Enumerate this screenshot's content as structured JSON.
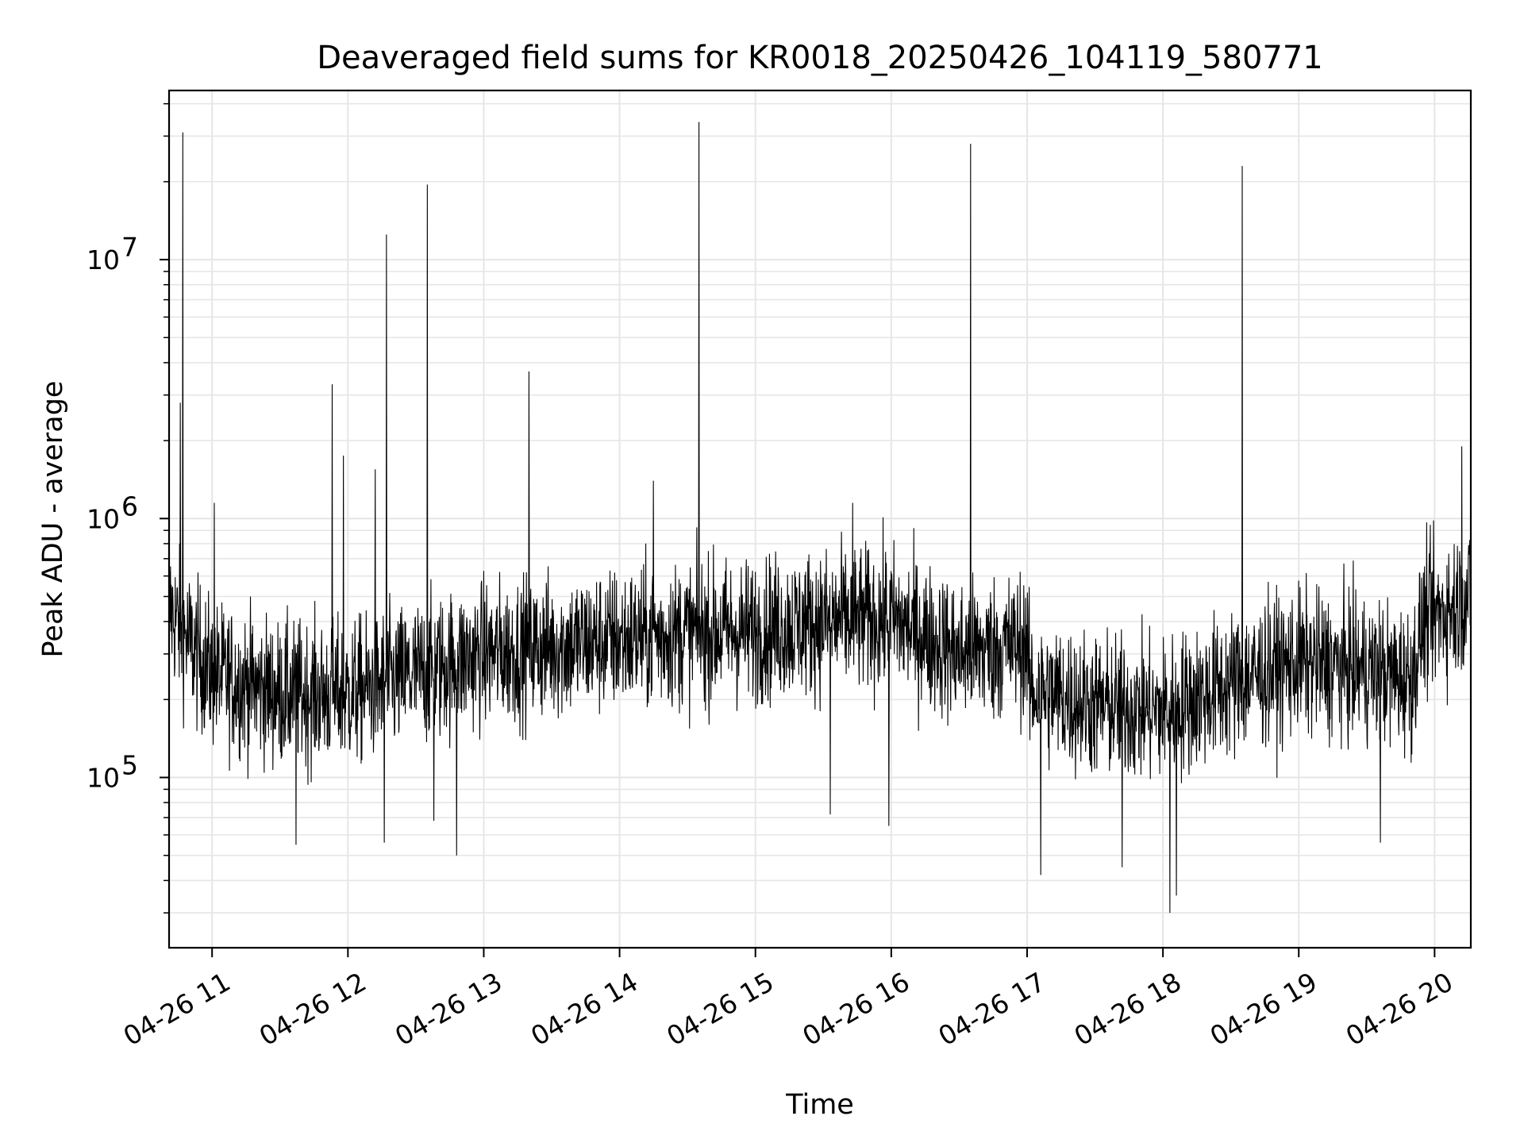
{
  "chart_data": {
    "type": "line",
    "title": "Deaveraged field sums for KR0018_20250426_104119_580771",
    "xlabel": "Time",
    "ylabel": "Peak ADU - average",
    "yscale": "log",
    "ylim": [
      22000,
      45000000
    ],
    "xlim": [
      "2025-04-26T10:41",
      "2025-04-26T20:16"
    ],
    "x_ticks": [
      {
        "t": "2025-04-26T11:00",
        "label": "04-26 11"
      },
      {
        "t": "2025-04-26T12:00",
        "label": "04-26 12"
      },
      {
        "t": "2025-04-26T13:00",
        "label": "04-26 13"
      },
      {
        "t": "2025-04-26T14:00",
        "label": "04-26 14"
      },
      {
        "t": "2025-04-26T15:00",
        "label": "04-26 15"
      },
      {
        "t": "2025-04-26T16:00",
        "label": "04-26 16"
      },
      {
        "t": "2025-04-26T17:00",
        "label": "04-26 17"
      },
      {
        "t": "2025-04-26T18:00",
        "label": "04-26 18"
      },
      {
        "t": "2025-04-26T19:00",
        "label": "04-26 19"
      },
      {
        "t": "2025-04-26T20:00",
        "label": "04-26 20"
      }
    ],
    "y_ticks": [
      {
        "value": 100000,
        "base": "10",
        "exp": "5"
      },
      {
        "value": 1000000,
        "base": "10",
        "exp": "6"
      },
      {
        "value": 10000000,
        "base": "10",
        "exp": "7"
      }
    ],
    "grid": true,
    "line_color": "#000000",
    "grid_color": "#e6e6e6",
    "series": [
      {
        "baseline": [
          {
            "t": "2025-04-26T10:41",
            "value": 450000
          },
          {
            "t": "2025-04-26T10:50",
            "value": 330000
          },
          {
            "t": "2025-04-26T11:00",
            "value": 250000
          },
          {
            "t": "2025-04-26T11:30",
            "value": 210000
          },
          {
            "t": "2025-04-26T12:00",
            "value": 210000
          },
          {
            "t": "2025-04-26T12:30",
            "value": 250000
          },
          {
            "t": "2025-04-26T13:00",
            "value": 300000
          },
          {
            "t": "2025-04-26T13:30",
            "value": 320000
          },
          {
            "t": "2025-04-26T14:00",
            "value": 340000
          },
          {
            "t": "2025-04-26T14:30",
            "value": 360000
          },
          {
            "t": "2025-04-26T15:00",
            "value": 370000
          },
          {
            "t": "2025-04-26T15:30",
            "value": 400000
          },
          {
            "t": "2025-04-26T16:00",
            "value": 410000
          },
          {
            "t": "2025-04-26T16:30",
            "value": 300000
          },
          {
            "t": "2025-04-26T17:00",
            "value": 330000
          },
          {
            "t": "2025-04-26T17:01",
            "value": 220000
          },
          {
            "t": "2025-04-26T17:30",
            "value": 190000
          },
          {
            "t": "2025-04-26T18:00",
            "value": 180000
          },
          {
            "t": "2025-04-26T18:30",
            "value": 230000
          },
          {
            "t": "2025-04-26T19:00",
            "value": 280000
          },
          {
            "t": "2025-04-26T19:30",
            "value": 260000
          },
          {
            "t": "2025-04-26T19:50",
            "value": 240000
          },
          {
            "t": "2025-04-26T19:55",
            "value": 400000
          },
          {
            "t": "2025-04-26T20:16",
            "value": 500000
          }
        ],
        "spikes": [
          {
            "t": "2025-04-26T10:47",
            "value": 31000000
          },
          {
            "t": "2025-04-26T10:46",
            "value": 2800000
          },
          {
            "t": "2025-04-26T11:01",
            "value": 1150000
          },
          {
            "t": "2025-04-26T11:53",
            "value": 3300000
          },
          {
            "t": "2025-04-26T11:58",
            "value": 1750000
          },
          {
            "t": "2025-04-26T12:12",
            "value": 1550000
          },
          {
            "t": "2025-04-26T12:17",
            "value": 12500000
          },
          {
            "t": "2025-04-26T12:35",
            "value": 19500000
          },
          {
            "t": "2025-04-26T13:20",
            "value": 3700000
          },
          {
            "t": "2025-04-26T14:15",
            "value": 1400000
          },
          {
            "t": "2025-04-26T14:35",
            "value": 34000000
          },
          {
            "t": "2025-04-26T15:43",
            "value": 1150000
          },
          {
            "t": "2025-04-26T16:35",
            "value": 28000000
          },
          {
            "t": "2025-04-26T18:35",
            "value": 23000000
          },
          {
            "t": "2025-04-26T20:12",
            "value": 1900000
          }
        ],
        "dips": [
          {
            "t": "2025-04-26T11:37",
            "value": 55000
          },
          {
            "t": "2025-04-26T12:16",
            "value": 56000
          },
          {
            "t": "2025-04-26T12:38",
            "value": 68000
          },
          {
            "t": "2025-04-26T12:48",
            "value": 50000
          },
          {
            "t": "2025-04-26T15:33",
            "value": 72000
          },
          {
            "t": "2025-04-26T15:59",
            "value": 65000
          },
          {
            "t": "2025-04-26T17:06",
            "value": 42000
          },
          {
            "t": "2025-04-26T17:42",
            "value": 45000
          },
          {
            "t": "2025-04-26T18:03",
            "value": 30000
          },
          {
            "t": "2025-04-26T18:06",
            "value": 35000
          },
          {
            "t": "2025-04-26T19:36",
            "value": 56000
          }
        ]
      }
    ]
  }
}
